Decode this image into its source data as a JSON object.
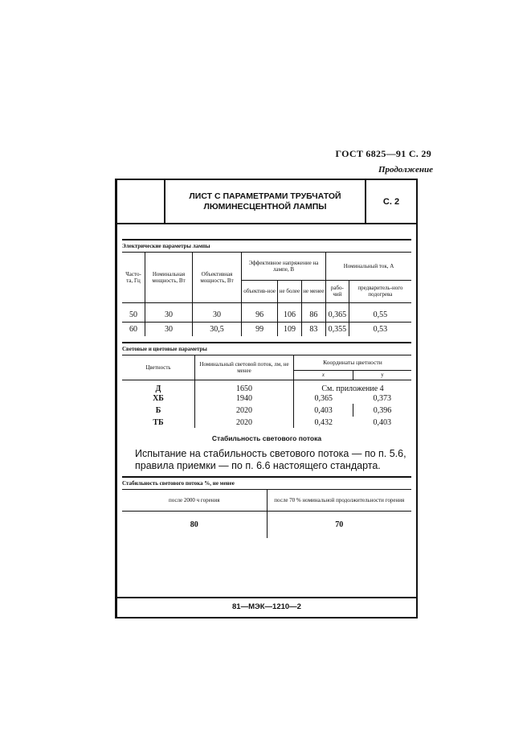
{
  "header": {
    "standard": "ГОСТ 6825—91 С. 29",
    "continuation": "Продолжение"
  },
  "title_box": {
    "title_line1": "ЛИСТ С ПАРАМЕТРАМИ ТРУБЧАТОЙ",
    "title_line2": "ЛЮМИНЕСЦЕНТНОЙ ЛАМПЫ",
    "sheet": "С. 2"
  },
  "electrical": {
    "title": "Электрические параметры лампы",
    "headers": {
      "freq": "Часто-та, Гц",
      "nominal_power": "Номинальная мощность, Вт",
      "objective_power": "Объективная мощность, Вт",
      "voltage": "Эффективное напряжение на лампе, В",
      "voltage_obj": "объектив-ное",
      "voltage_max": "не более",
      "voltage_min": "не менее",
      "current": "Номинальный ток, А",
      "current_work": "рабо-чий",
      "current_preheat": "предваритель-ного подогрева"
    },
    "rows": [
      [
        "50",
        "30",
        "30",
        "96",
        "106",
        "86",
        "0,365",
        "0,55"
      ],
      [
        "60",
        "30",
        "30,5",
        "99",
        "109",
        "83",
        "0,355",
        "0,53"
      ]
    ]
  },
  "light": {
    "title": "Световые и цветовые параметры",
    "headers": {
      "color": "Цветность",
      "flux": "Номинальный световой поток, лм, не менее",
      "coords": "Координаты цветности",
      "x": "x",
      "y": "y"
    },
    "rows": [
      [
        "Д",
        "1650",
        "См. приложение 4",
        ""
      ],
      [
        "ХБ",
        "1940",
        "0,365",
        "0,373"
      ],
      [
        "Б",
        "2020",
        "0,403",
        "0,396"
      ],
      [
        "ТБ",
        "2020",
        "0,432",
        "0,403"
      ]
    ]
  },
  "stability": {
    "heading": "Стабильность светового потока",
    "paragraph": "Испытание на стабильность светового потока — по п. 5.6, правила приемки — по п. 6.6 настоящего стандарта.",
    "title": "Стабильность светового потока %, не менее",
    "headers": [
      "после 2000 ч горения",
      "после 70 % номинальной продолжительности горения"
    ],
    "values": [
      "80",
      "70"
    ]
  },
  "footer": "81—МЭК—1210—2"
}
